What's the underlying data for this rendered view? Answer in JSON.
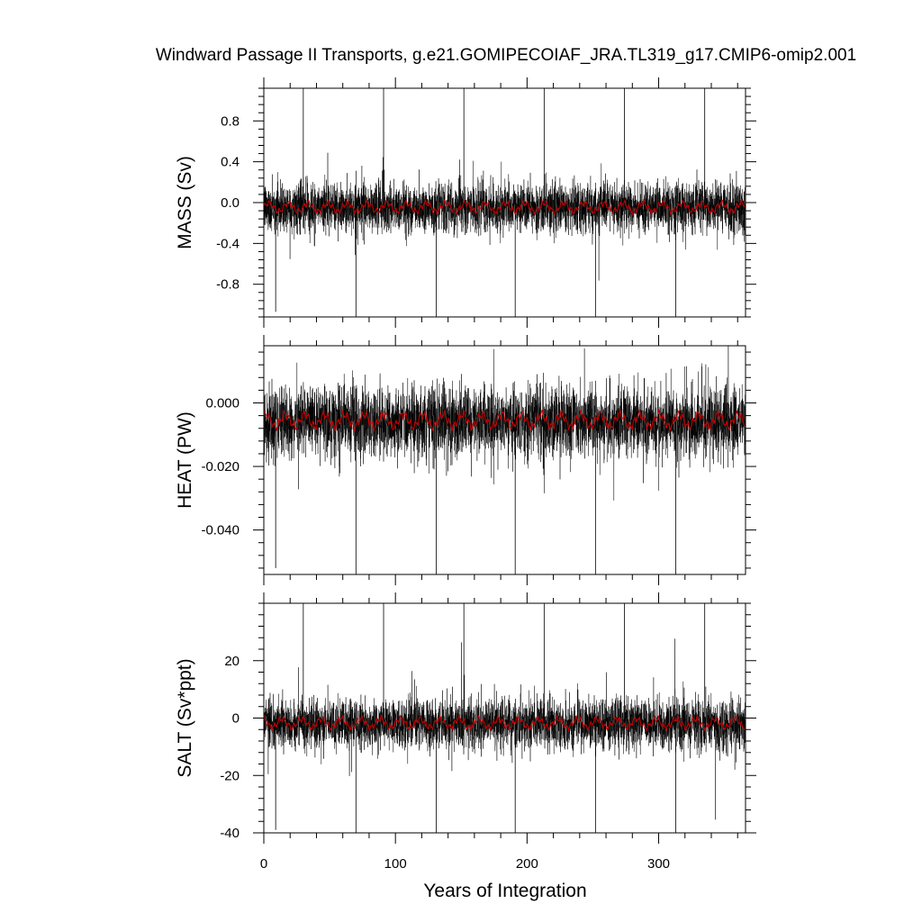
{
  "title": "Windward Passage II Transports, g.e21.GOMIPECOIAF_JRA.TL319_g17.CMIP6-omip2.001",
  "xlabel": "Years of Integration",
  "x_ticks": [
    "0",
    "100",
    "200",
    "300"
  ],
  "colors": {
    "raw": "#000000",
    "smoothed": "#cc0000",
    "frame": "#000000"
  },
  "chart_data": [
    {
      "type": "line",
      "name_hint": "mass",
      "ylabel": "MASS (Sv)",
      "xlim": [
        0,
        366
      ],
      "ylim": [
        -1.12,
        1.12
      ],
      "y_ticks": [
        -0.8,
        -0.4,
        0.0,
        0.4,
        0.8
      ],
      "y_tick_labels": [
        "-0.8",
        "-0.4",
        "0.0",
        "0.4",
        "0.8"
      ],
      "mean": -0.05,
      "noise_sd": 0.12,
      "smoothed_range": [
        -0.12,
        0.03
      ],
      "spikes_up": [
        {
          "x": 30,
          "y": 1.12
        },
        {
          "x": 91,
          "y": 1.12
        },
        {
          "x": 152,
          "y": 1.12
        },
        {
          "x": 213,
          "y": 1.12
        },
        {
          "x": 274,
          "y": 1.12
        },
        {
          "x": 335,
          "y": 1.12
        }
      ],
      "spikes_down": [
        {
          "x": 9,
          "y": -1.07
        },
        {
          "x": 70,
          "y": -1.12
        },
        {
          "x": 131,
          "y": -1.12
        },
        {
          "x": 191,
          "y": -1.12
        },
        {
          "x": 252,
          "y": -1.12
        },
        {
          "x": 313,
          "y": -1.12
        }
      ],
      "grid": false
    },
    {
      "type": "line",
      "name_hint": "heat",
      "ylabel": "HEAT (PW)",
      "xlim": [
        0,
        366
      ],
      "ylim": [
        -0.054,
        0.018
      ],
      "y_ticks": [
        -0.04,
        -0.02,
        0.0
      ],
      "y_tick_labels": [
        "-0.040",
        "-0.020",
        "0.000"
      ],
      "mean": -0.006,
      "noise_sd": 0.0055,
      "smoothed_range": [
        -0.009,
        -0.002
      ],
      "spikes_up": [],
      "spikes_down": [
        {
          "x": 9,
          "y": -0.052
        },
        {
          "x": 70,
          "y": -0.054
        },
        {
          "x": 131,
          "y": -0.054
        },
        {
          "x": 191,
          "y": -0.054
        },
        {
          "x": 252,
          "y": -0.054
        },
        {
          "x": 313,
          "y": -0.054
        }
      ],
      "grid": false
    },
    {
      "type": "line",
      "name_hint": "salt",
      "ylabel": "SALT (Sv*ppt)",
      "xlim": [
        0,
        366
      ],
      "ylim": [
        -40,
        40
      ],
      "y_ticks": [
        -40,
        -20,
        0,
        20
      ],
      "y_tick_labels": [
        "-40",
        "-20",
        "0",
        "20"
      ],
      "mean": -2,
      "noise_sd": 4.3,
      "smoothed_range": [
        -4.5,
        1
      ],
      "spikes_up": [
        {
          "x": 30,
          "y": 40
        },
        {
          "x": 91,
          "y": 40
        },
        {
          "x": 152,
          "y": 40
        },
        {
          "x": 213,
          "y": 40
        },
        {
          "x": 274,
          "y": 40
        },
        {
          "x": 335,
          "y": 40
        }
      ],
      "spikes_down": [
        {
          "x": 9,
          "y": -39
        },
        {
          "x": 70,
          "y": -40
        },
        {
          "x": 131,
          "y": -40
        },
        {
          "x": 191,
          "y": -40
        },
        {
          "x": 252,
          "y": -40
        },
        {
          "x": 313,
          "y": -40
        }
      ],
      "grid": false
    }
  ]
}
